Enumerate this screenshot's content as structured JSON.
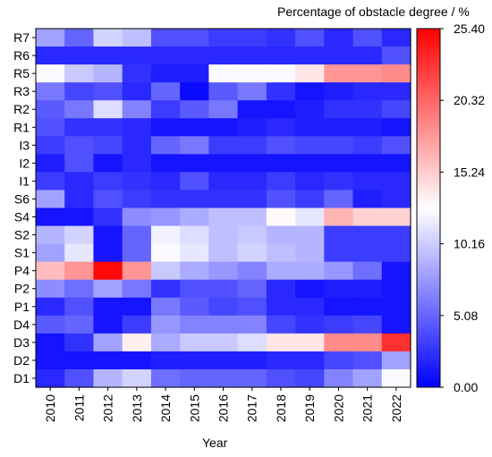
{
  "chart_data": {
    "type": "heatmap",
    "title": "Percentage of obstacle degree / %",
    "xlabel": "Year",
    "ylabel": "",
    "x": [
      "2010",
      "2011",
      "2012",
      "2013",
      "2014",
      "2015",
      "2016",
      "2017",
      "2018",
      "2019",
      "2020",
      "2021",
      "2022"
    ],
    "y": [
      "R7",
      "R6",
      "R5",
      "R3",
      "R2",
      "R1",
      "I3",
      "I2",
      "I1",
      "S6",
      "S4",
      "S2",
      "S1",
      "P4",
      "P2",
      "P1",
      "D4",
      "D3",
      "D2",
      "D1"
    ],
    "values": [
      [
        8,
        5,
        10.5,
        9.5,
        4,
        4,
        3,
        3,
        2.5,
        4,
        2,
        4,
        2
      ],
      [
        2,
        2,
        2,
        2,
        2,
        2,
        2,
        2,
        2,
        2,
        2,
        2,
        4
      ],
      [
        12.5,
        10,
        9,
        2.5,
        1.5,
        1.5,
        12.5,
        12.5,
        12.5,
        14,
        18,
        18,
        18.5
      ],
      [
        6,
        3.5,
        4,
        2,
        5,
        0.5,
        4.5,
        6,
        2.5,
        1,
        1.5,
        2,
        2
      ],
      [
        4.5,
        6,
        11,
        6.5,
        3,
        4.5,
        6,
        1,
        1,
        1.5,
        2.5,
        2.5,
        3.5
      ],
      [
        4,
        2.5,
        2.5,
        2,
        1,
        1,
        1,
        1.5,
        2,
        1.5,
        1.5,
        1.5,
        1
      ],
      [
        3,
        4,
        3.5,
        2,
        5,
        6,
        3,
        3,
        4,
        3.5,
        3.5,
        3,
        4
      ],
      [
        1.5,
        4,
        1,
        2,
        1,
        1,
        1,
        1,
        1,
        1,
        1,
        1,
        1
      ],
      [
        3,
        2,
        3,
        2.5,
        2,
        4,
        2,
        2,
        3,
        2,
        2.5,
        2,
        2
      ],
      [
        8,
        2,
        4,
        3,
        2.5,
        2.5,
        2.5,
        2.5,
        4,
        3,
        5,
        1.5,
        2
      ],
      [
        1,
        1,
        2.5,
        7,
        7.5,
        8.5,
        9.5,
        9.5,
        13,
        11.5,
        16.5,
        15,
        15
      ],
      [
        9,
        10.5,
        1,
        5,
        12,
        11,
        9.5,
        10,
        9,
        9,
        3,
        3,
        3
      ],
      [
        8,
        11.5,
        1,
        5,
        12.5,
        11.5,
        9.5,
        10.5,
        9.5,
        9,
        3,
        3,
        3
      ],
      [
        16,
        18,
        25,
        18,
        10,
        8.5,
        7.5,
        6.5,
        8.5,
        8.5,
        7.5,
        5.5,
        1
      ],
      [
        7,
        5.5,
        8,
        6,
        2.5,
        4,
        4,
        5,
        2,
        1,
        1.5,
        1.5,
        1
      ],
      [
        2,
        4,
        1,
        1,
        6,
        4.5,
        3.5,
        4,
        2,
        2,
        1,
        1,
        1
      ],
      [
        4.5,
        5,
        1,
        3,
        7.5,
        6.5,
        6.5,
        6.5,
        3.5,
        2.5,
        3,
        3.5,
        1
      ],
      [
        1,
        2.5,
        8,
        13.5,
        8.5,
        10,
        10,
        11,
        14,
        14,
        18.5,
        18.5,
        23
      ],
      [
        1,
        1,
        1,
        1,
        1.5,
        1.5,
        1.5,
        1.5,
        2,
        2,
        3.5,
        4,
        8
      ],
      [
        2,
        4,
        9,
        10.5,
        5.5,
        5,
        5,
        5,
        4,
        3.5,
        6.5,
        8,
        12.5
      ]
    ],
    "vmin": 0,
    "vmax": 25.4,
    "colorbar_ticks": [
      "0.00",
      "5.08",
      "10.16",
      "15.24",
      "20.32",
      "25.40"
    ],
    "colormap": [
      "#0000ff",
      "#ffffff",
      "#ff0000"
    ],
    "grid": false
  }
}
